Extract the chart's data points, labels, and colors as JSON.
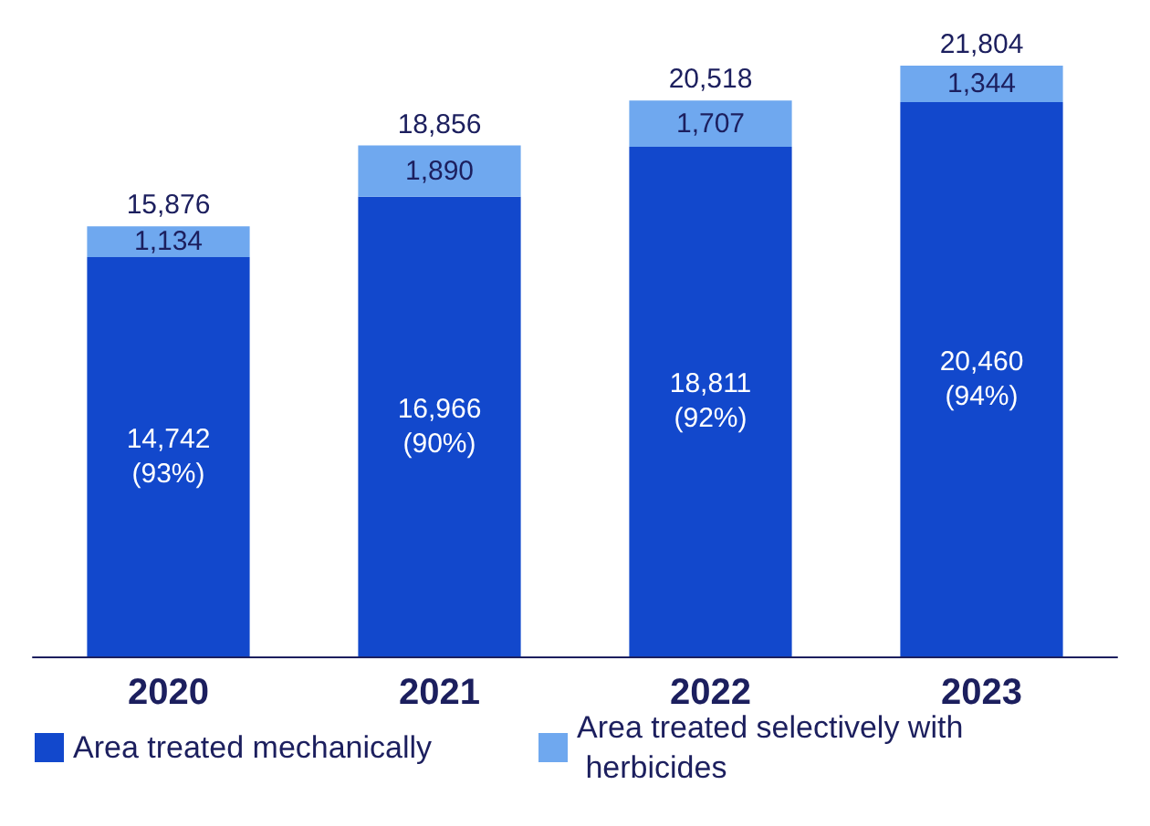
{
  "chart_data": {
    "type": "bar",
    "stacked": true,
    "categories": [
      "2020",
      "2021",
      "2022",
      "2023"
    ],
    "series": [
      {
        "name": "Area treated mechanically",
        "color": "#1248cc",
        "values": [
          14742,
          16966,
          18811,
          20460
        ],
        "value_labels": [
          "14,742\n(93%)",
          "16,966\n(90%)",
          "18,811\n(92%)",
          "20,460\n(94%)"
        ]
      },
      {
        "name": "Area treated selectively with herbicides",
        "color": "#6fa8ef",
        "values": [
          1134,
          1890,
          1707,
          1344
        ],
        "value_labels": [
          "1,134",
          "1,890",
          "1,707",
          "1,344"
        ]
      }
    ],
    "totals": [
      "15,876",
      "18,856",
      "20,518",
      "21,804"
    ],
    "legend": "bottom left"
  }
}
